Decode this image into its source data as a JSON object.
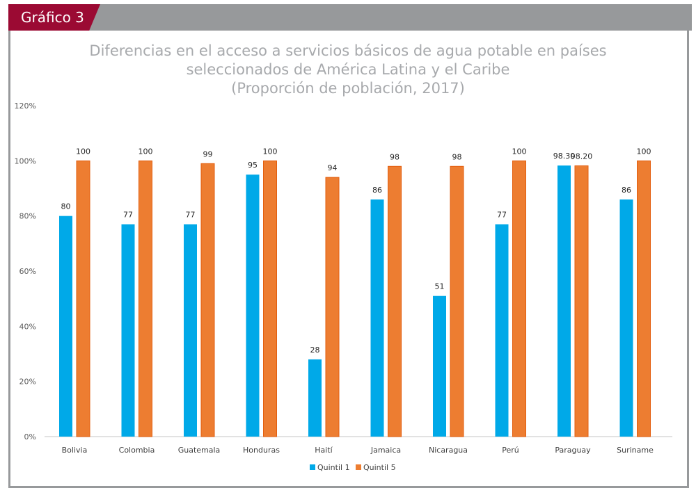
{
  "header": {
    "label": "Gráfico 3",
    "accent_color": "#9b0a33",
    "bar_color": "#97999b"
  },
  "chart_data": {
    "type": "bar",
    "title": "Diferencias en el acceso a servicios básicos de agua potable en países seleccionados de América Latina y el Caribe (Proporción de población, 2017)",
    "title_lines": [
      "Diferencias en el acceso a servicios básicos de agua potable en países",
      "seleccionados de América Latina y el Caribe",
      "(Proporción de población, 2017)"
    ],
    "xlabel": "",
    "ylabel": "",
    "categories": [
      "Bolivia",
      "Colombia",
      "Guatemala",
      "Honduras",
      "Haití",
      "Jamaica",
      "Nicaragua",
      "Perú",
      "Paraguay",
      "Suriname"
    ],
    "series": [
      {
        "name": "Quintil 1",
        "color": "#00a9e8",
        "values": [
          80,
          77,
          77,
          95,
          28,
          86,
          51,
          77,
          98.3,
          86
        ],
        "labels": [
          "80",
          "77",
          "77",
          "95",
          "28",
          "86",
          "51",
          "77",
          "98.30",
          "86"
        ]
      },
      {
        "name": "Quintil 5",
        "color": "#ed7d31",
        "values": [
          100,
          100,
          99,
          100,
          94,
          98,
          98,
          100,
          98.2,
          100
        ],
        "labels": [
          "100",
          "100",
          "99",
          "100",
          "94",
          "98",
          "98",
          "100",
          "98.20",
          "100"
        ]
      }
    ],
    "ylim": [
      0,
      120
    ],
    "yticks": [
      0,
      20,
      40,
      60,
      80,
      100,
      120
    ],
    "ytick_labels": [
      "0%",
      "20%",
      "40%",
      "60%",
      "80%",
      "100%",
      "120%"
    ],
    "grid": false,
    "legend_position": "bottom-center"
  }
}
